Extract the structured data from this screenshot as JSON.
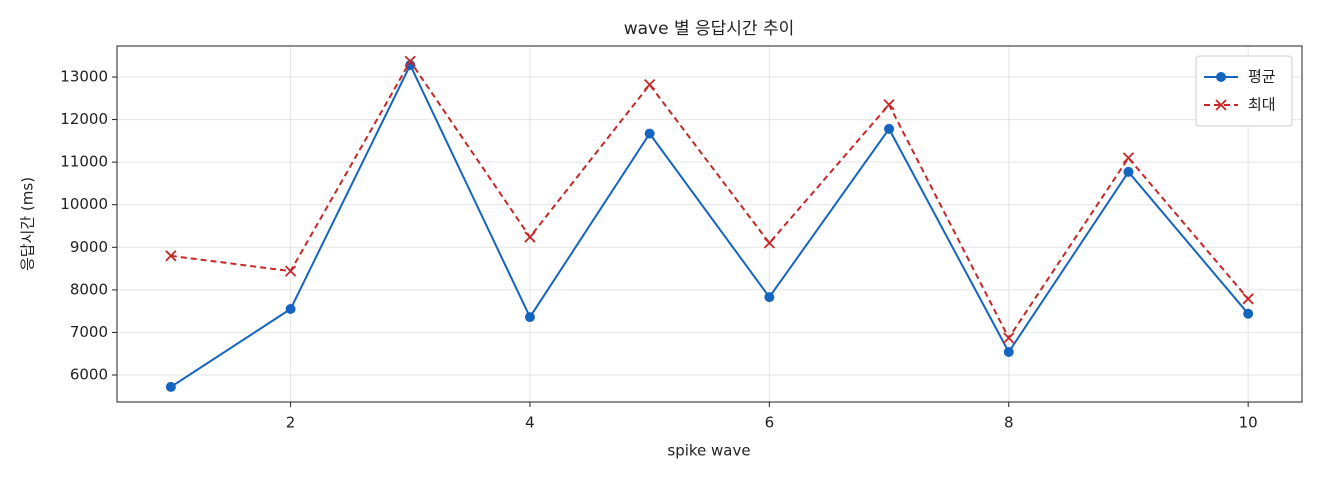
{
  "chart_data": {
    "type": "line",
    "title": "wave 별 응답시간 추이",
    "xlabel": "spike wave",
    "ylabel": "응답시간 (ms)",
    "x": [
      1,
      2,
      3,
      4,
      5,
      6,
      7,
      8,
      9,
      10
    ],
    "series": [
      {
        "name": "평균",
        "color": "#1565c0",
        "marker": "circle",
        "dash": false,
        "values": [
          5720,
          7550,
          13280,
          7360,
          11670,
          7830,
          11780,
          6540,
          10770,
          7440
        ]
      },
      {
        "name": "최대",
        "color": "#c62828",
        "marker": "x",
        "dash": true,
        "values": [
          8800,
          8440,
          13370,
          9240,
          12820,
          9100,
          12350,
          6870,
          11100,
          7790
        ]
      }
    ],
    "xlim": [
      0.55,
      10.45
    ],
    "xticks": [
      2,
      4,
      6,
      8,
      10
    ],
    "ylim": [
      5366,
      13728
    ],
    "yticks": [
      6000,
      7000,
      8000,
      9000,
      10000,
      11000,
      12000,
      13000
    ],
    "grid": true,
    "legend": "upper right"
  }
}
